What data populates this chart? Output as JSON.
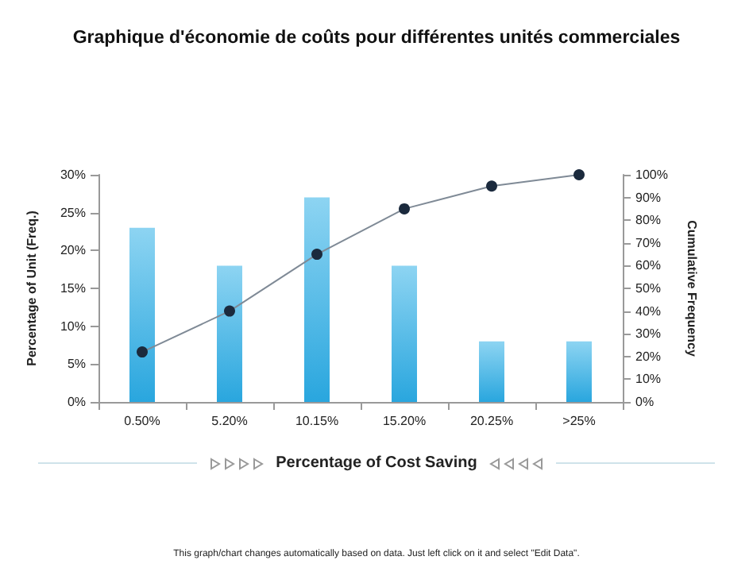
{
  "chart_data": {
    "type": "bar",
    "title": "Graphique d'économie de coûts pour différentes unités commerciales",
    "xlabel": "Percentage of Cost Saving",
    "ylabel": "Percentage of Unit (Freq.)",
    "y2label": "Cumulative Frequency",
    "categories": [
      "0.50%",
      "5.20%",
      "10.15%",
      "15.20%",
      "20.25%",
      ">25%"
    ],
    "series": [
      {
        "color": "#29a6de",
        "values": [
          23,
          18,
          27,
          18,
          8,
          8
        ]
      },
      {
        "type": "line",
        "axis": "y2",
        "color": "#7f8a96",
        "marker": "circle",
        "values": [
          22,
          40,
          65,
          85,
          95,
          100
        ]
      }
    ],
    "ylim": [
      0,
      30
    ],
    "yticks": [
      {
        "value": 0,
        "label": "0%"
      },
      {
        "value": 5,
        "label": "5%"
      },
      {
        "value": 10,
        "label": "10%"
      },
      {
        "value": 15,
        "label": "15%"
      },
      {
        "value": 20,
        "label": "20%"
      },
      {
        "value": 25,
        "label": "25%"
      },
      {
        "value": 30,
        "label": "30%"
      }
    ],
    "y2lim": [
      0,
      100
    ],
    "y2ticks": [
      {
        "value": 0,
        "label": "0%"
      },
      {
        "value": 10,
        "label": "10%"
      },
      {
        "value": 20,
        "label": "20%"
      },
      {
        "value": 30,
        "label": "30%"
      },
      {
        "value": 40,
        "label": "40%"
      },
      {
        "value": 50,
        "label": "50%"
      },
      {
        "value": 60,
        "label": "60%"
      },
      {
        "value": 70,
        "label": "70%"
      },
      {
        "value": 80,
        "label": "80%"
      },
      {
        "value": 90,
        "label": "90%"
      },
      {
        "value": 100,
        "label": "100%"
      }
    ],
    "annotations": [
      "This graph/chart changes automatically based on data. Just left click on it and select \"Edit Data\"."
    ],
    "grid": false
  }
}
